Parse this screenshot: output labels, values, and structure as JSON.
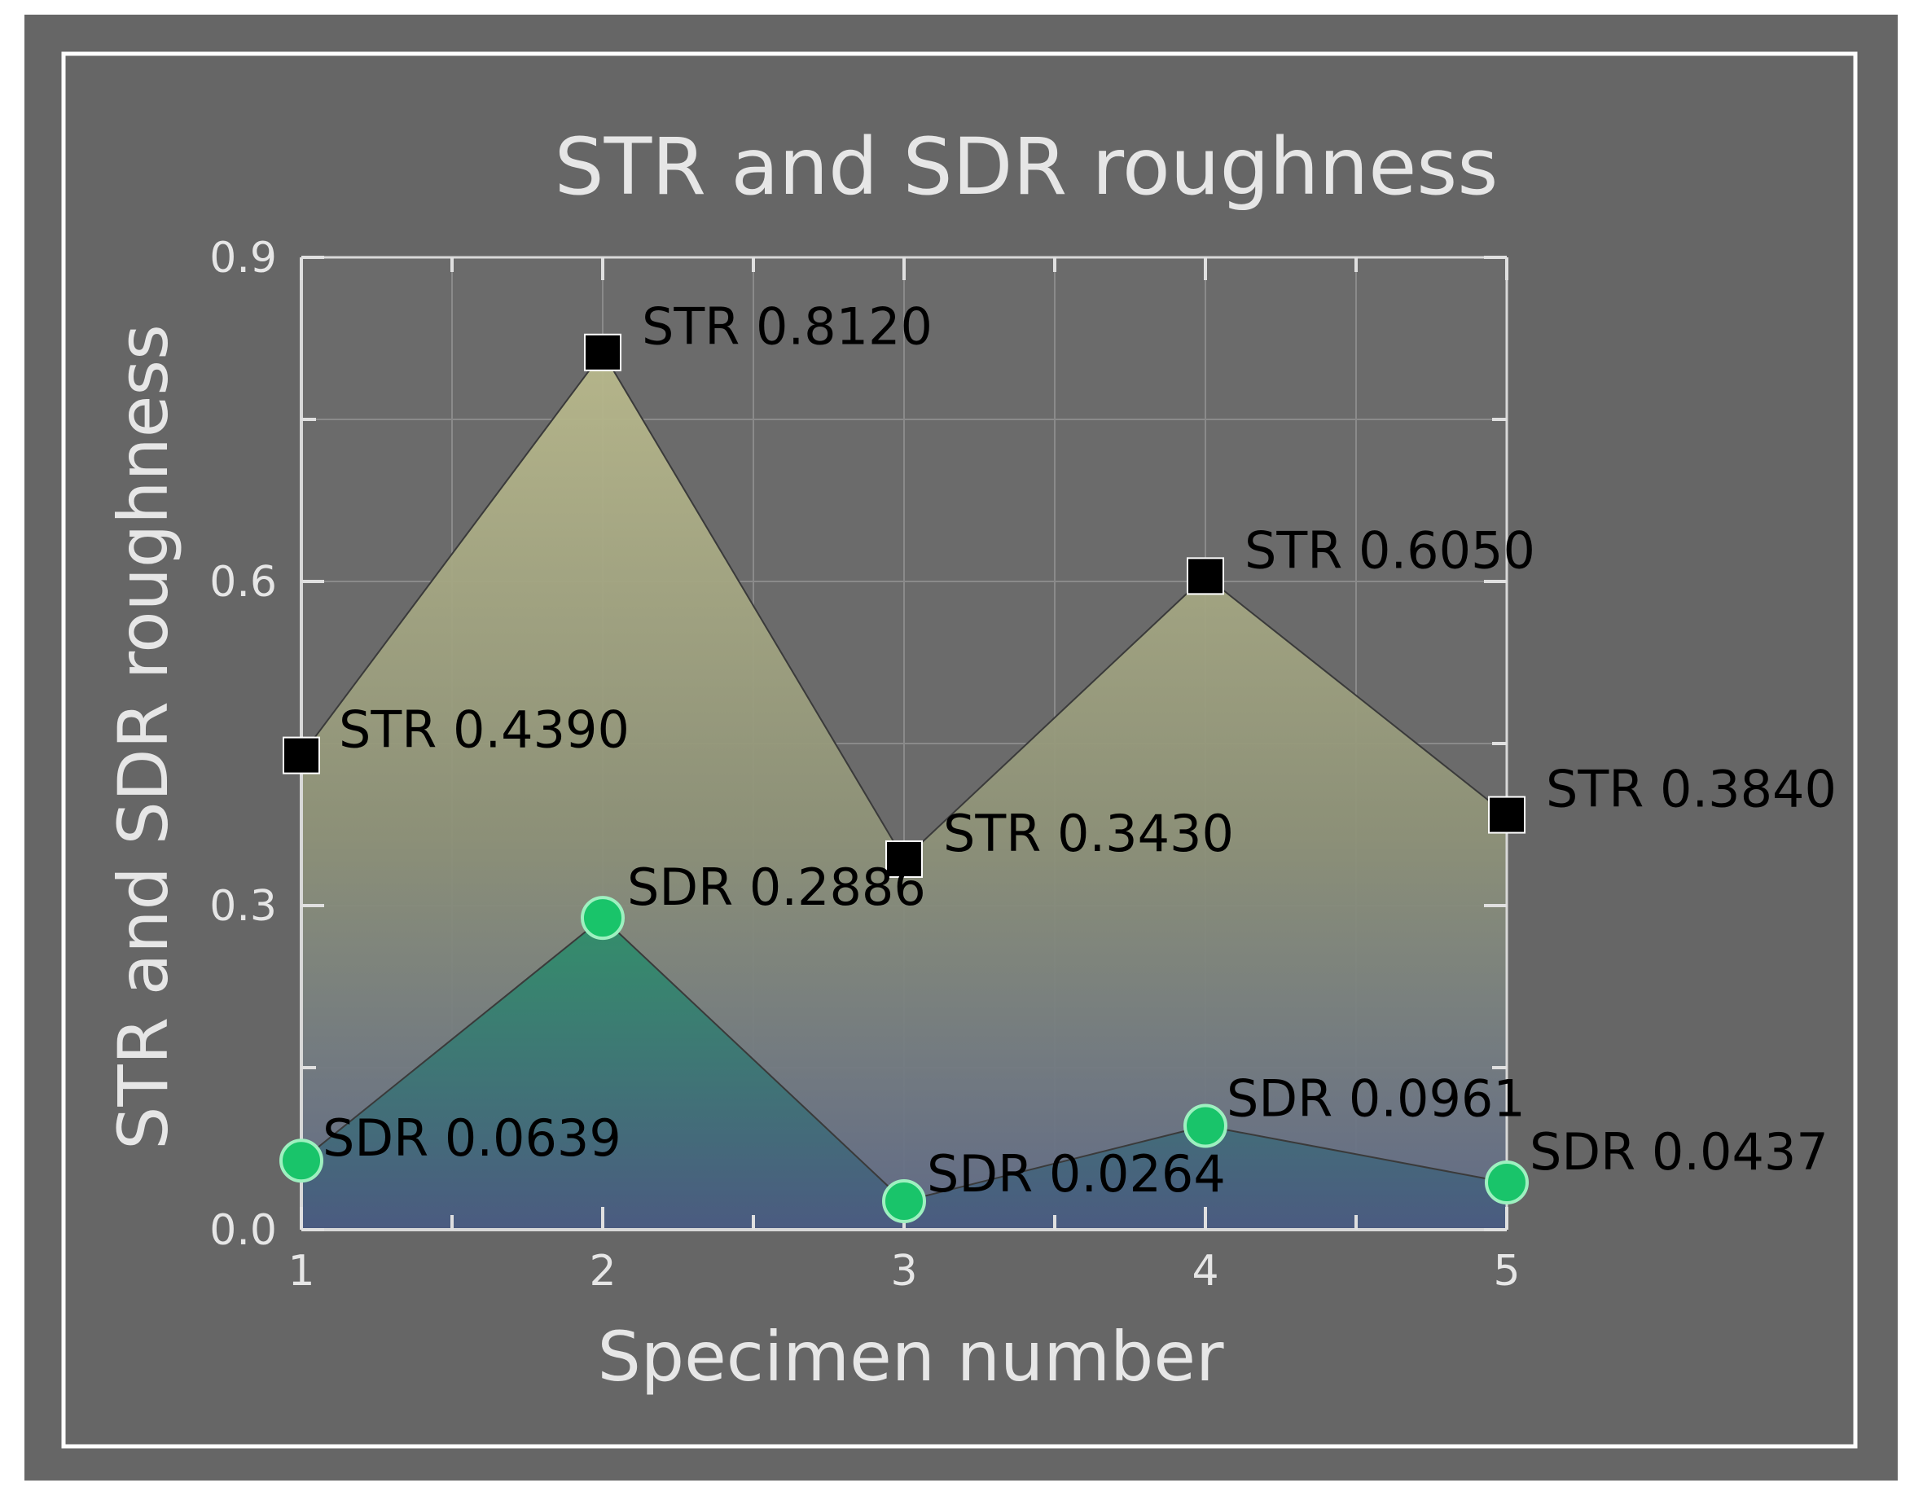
{
  "chart_data": {
    "type": "area",
    "title": "STR and SDR roughness",
    "xlabel": "Specimen number",
    "ylabel": "STR and SDR roughness",
    "x": [
      1,
      2,
      3,
      4,
      5
    ],
    "xlim": [
      1,
      5
    ],
    "ylim": [
      0,
      0.9
    ],
    "x_ticks": [
      "1",
      "2",
      "3",
      "4",
      "5"
    ],
    "y_ticks": [
      "0.0",
      "0.3",
      "0.6",
      "0.9"
    ],
    "grid": true,
    "legend": "none",
    "series": [
      {
        "key": "str",
        "values": [
          0.439,
          0.812,
          0.343,
          0.605,
          0.384
        ],
        "labels": [
          "STR 0.4390",
          "STR 0.8120",
          "STR 0.3430",
          "STR 0.6050",
          "STR 0.3840"
        ],
        "marker": "square",
        "marker_color": "#000000"
      },
      {
        "key": "sdr",
        "values": [
          0.0639,
          0.2886,
          0.0264,
          0.0961,
          0.0437
        ],
        "labels": [
          "SDR 0.0639",
          "SDR 0.2886",
          "SDR 0.0264",
          "SDR 0.0961",
          "SDR 0.0437"
        ],
        "marker": "circle",
        "marker_color": "#19c46a"
      }
    ],
    "colors": {
      "background": "#666666",
      "frame": "#ffffff",
      "plot_background": "#6b6b6b",
      "text_light": "#e6e6e6",
      "grid": "#8a8a8a",
      "str_fill_top": "#b9b98c",
      "str_fill_bottom": "#5f6a88",
      "sdr_fill_top": "#2f8f6a",
      "sdr_fill_bottom": "#4a5a80"
    }
  }
}
